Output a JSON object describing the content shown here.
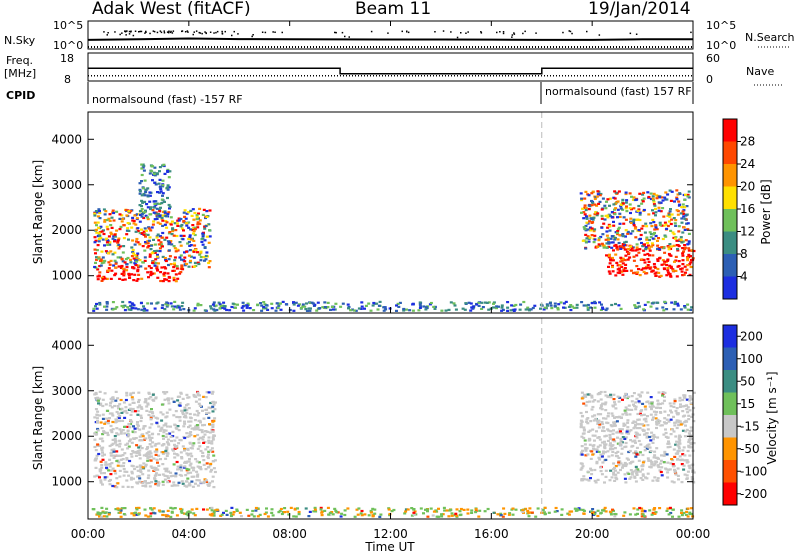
{
  "header": {
    "station": "Adak West (fitACF)",
    "beam": "Beam 11",
    "date": "19/Jan/2014"
  },
  "labels": {
    "nsky": "N.Sky",
    "nsearch": "N.Search",
    "freq_line1": "Freq.",
    "freq_line2": "[MHz]",
    "nave": "Nave",
    "cpid": "CPID",
    "cpid_left": "normalsound (fast) -157 RF",
    "cpid_right": "normalsound (fast) 157 RF",
    "noise_ticks": [
      "10^5",
      "10^0"
    ],
    "freq_ticks": [
      "18",
      "8"
    ],
    "nave_ticks": [
      "60",
      "0"
    ]
  },
  "chart_data": [
    {
      "type": "line",
      "panel": "noise",
      "title": "N.Sky / N.Search",
      "ylim": [
        1,
        100000
      ],
      "yscale": "log",
      "series": [
        {
          "name": "N.Sky",
          "style": "solid",
          "x": [
            "00:00",
            "02:00",
            "04:00",
            "06:00",
            "08:00",
            "10:00",
            "12:00",
            "14:00",
            "16:00",
            "18:00",
            "20:00",
            "22:00",
            "24:00"
          ],
          "values": [
            30,
            40,
            60,
            45,
            40,
            38,
            36,
            36,
            34,
            30,
            30,
            40,
            40
          ]
        },
        {
          "name": "N.Search",
          "style": "dotted",
          "x": [
            "00:00",
            "24:00"
          ],
          "values": [
            1,
            1
          ]
        }
      ]
    },
    {
      "type": "line",
      "panel": "frequency",
      "ylim": [
        8,
        18
      ],
      "series": [
        {
          "name": "Freq.",
          "style": "solid",
          "x": [
            "00:00",
            "10:00",
            "10:00",
            "18:00",
            "18:00",
            "24:00"
          ],
          "values": [
            12.5,
            12.5,
            10.4,
            10.4,
            12.5,
            12.5
          ]
        },
        {
          "name": "Nave",
          "style": "dotted",
          "x": [
            "00:00",
            "24:00"
          ],
          "values": [
            10,
            10
          ]
        }
      ]
    },
    {
      "type": "heatmap",
      "panel": "power",
      "xlabel": "",
      "ylabel": "Slant Range [km]",
      "xlim": [
        "00:00",
        "24:00"
      ],
      "ylim": [
        180,
        4600
      ],
      "colorbar": {
        "label": "Power [dB]",
        "ticks": [
          4,
          8,
          12,
          16,
          20,
          24,
          28
        ],
        "colors": [
          "#1c2ee0",
          "#2c5fb4",
          "#3b8d82",
          "#6fc05a",
          "#ffe000",
          "#ff9400",
          "#ff4800",
          "#ff0000"
        ]
      },
      "blobs": [
        {
          "t": [
            0.3,
            3.7
          ],
          "r": [
            900,
            1250
          ],
          "level": "high"
        },
        {
          "t": [
            0.2,
            4.8
          ],
          "r": [
            1200,
            2500
          ],
          "level": "mixed"
        },
        {
          "t": [
            2.0,
            3.2
          ],
          "r": [
            2300,
            3500
          ],
          "level": "weak"
        },
        {
          "t": [
            20.5,
            24.0
          ],
          "r": [
            1000,
            1700
          ],
          "level": "high"
        },
        {
          "t": [
            19.5,
            23.8
          ],
          "r": [
            1600,
            2900
          ],
          "level": "mixed"
        },
        {
          "t": [
            0.0,
            24.0
          ],
          "r": [
            250,
            450
          ],
          "level": "weak"
        }
      ]
    },
    {
      "type": "heatmap",
      "panel": "velocity",
      "xlabel": "Time UT",
      "ylabel": "Slant Range [km]",
      "xlim": [
        "00:00",
        "24:00"
      ],
      "ylim": [
        180,
        4600
      ],
      "x_ticks": [
        "00:00",
        "04:00",
        "08:00",
        "12:00",
        "16:00",
        "20:00",
        "00:00"
      ],
      "y_ticks": [
        1000,
        2000,
        3000,
        4000
      ],
      "colorbar": {
        "label": "Velocity [m s⁻¹]",
        "ticks": [
          200,
          100,
          50,
          15,
          -15,
          -50,
          -100,
          -200
        ],
        "colors": [
          "#1c2ee0",
          "#2c5fb4",
          "#3b8d82",
          "#6fc05a",
          "#c8c8c8",
          "#ff9400",
          "#ff5000",
          "#ff0000"
        ]
      },
      "blobs": [
        {
          "t": [
            0.2,
            5.0
          ],
          "r": [
            900,
            3000
          ],
          "level": "ground"
        },
        {
          "t": [
            19.5,
            24.0
          ],
          "r": [
            1000,
            3000
          ],
          "level": "ground"
        },
        {
          "t": [
            0.0,
            24.0
          ],
          "r": [
            250,
            450
          ],
          "level": "low"
        }
      ]
    }
  ]
}
